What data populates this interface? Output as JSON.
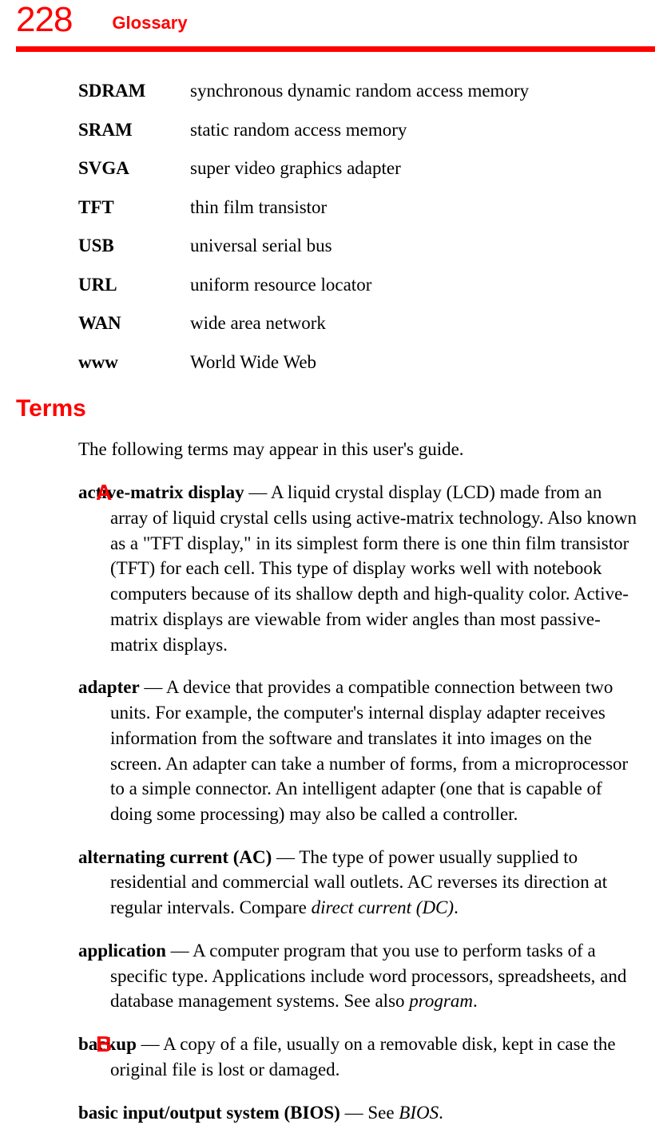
{
  "header": {
    "page_number": "228",
    "chapter_title": "Glossary"
  },
  "abbreviations": [
    {
      "term": "SDRAM",
      "def": "synchronous dynamic random access memory"
    },
    {
      "term": "SRAM",
      "def": "static random access memory"
    },
    {
      "term": "SVGA",
      "def": "super video graphics adapter"
    },
    {
      "term": "TFT",
      "def": "thin film transistor"
    },
    {
      "term": "USB",
      "def": "universal serial bus"
    },
    {
      "term": "URL",
      "def": "uniform resource locator"
    },
    {
      "term": "WAN",
      "def": "wide area network"
    },
    {
      "term": "www",
      "def": "World Wide Web"
    }
  ],
  "terms_section": {
    "heading": "Terms",
    "intro": "The following terms may appear in this user's guide."
  },
  "letters": {
    "a": "A",
    "b": "B"
  },
  "defs": {
    "active_matrix": {
      "term": "active-matrix display",
      "body": " — A liquid crystal display (LCD) made from an array of liquid crystal cells using active-matrix technology. Also known as a \"TFT display,\" in its simplest form there is one thin film transistor (TFT) for each cell. This type of display works well with notebook computers because of its shallow depth and high-quality color. Active-matrix displays are viewable from wider angles than most passive-matrix displays."
    },
    "adapter": {
      "term": "adapter",
      "body": " — A device that provides a compatible connection between two units. For example, the computer's internal display adapter receives information from the software and translates it into images on the screen. An adapter can take a number of forms, from a microprocessor to a simple connector. An intelligent adapter (one that is capable of doing some processing) may also be called a controller."
    },
    "ac": {
      "term": "alternating current (AC)",
      "body_pre": " — The type of power usually supplied to residential and commercial wall outlets. AC reverses its direction at regular intervals. Compare ",
      "italic": "direct current (DC)",
      "body_post": "."
    },
    "application": {
      "term": "application",
      "body_pre": " — A computer program that you use to perform tasks of a specific type. Applications include word processors, spreadsheets, and database management systems. See also ",
      "italic": "program",
      "body_post": "."
    },
    "backup": {
      "term": "backup",
      "body": " — A copy of a file, usually on a removable disk, kept in case the original file is lost or damaged."
    },
    "bios": {
      "term": "basic input/output system (BIOS)",
      "body_pre": " — See ",
      "italic": "BIOS",
      "body_post": "."
    }
  },
  "colors": {
    "accent": "#ff0000",
    "text": "#000000",
    "background": "#ffffff"
  }
}
